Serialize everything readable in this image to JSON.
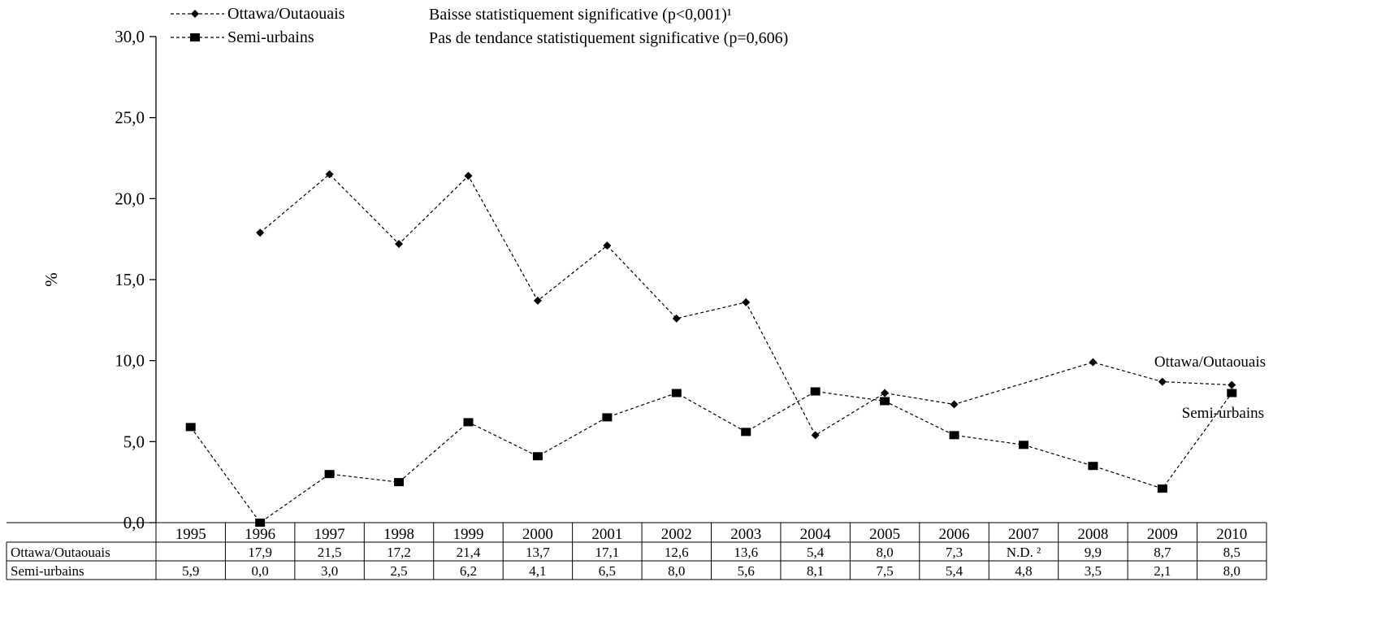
{
  "chart_data": {
    "type": "line",
    "title": "",
    "xlabel": "",
    "ylabel": "%",
    "ylim": [
      0,
      30
    ],
    "y_ticks": [
      "0,0",
      "5,0",
      "10,0",
      "15,0",
      "20,0",
      "25,0",
      "30,0"
    ],
    "categories": [
      "1995",
      "1996",
      "1997",
      "1998",
      "1999",
      "2000",
      "2001",
      "2002",
      "2003",
      "2004",
      "2005",
      "2006",
      "2007",
      "2008",
      "2009",
      "2010"
    ],
    "grid": false,
    "legend_position": "top-left",
    "series": [
      {
        "name": "Ottawa/Outaouais",
        "marker": "diamond",
        "values": [
          null,
          17.9,
          21.5,
          17.2,
          21.4,
          13.7,
          17.1,
          12.6,
          13.6,
          5.4,
          8.0,
          7.3,
          null,
          9.9,
          8.7,
          8.5
        ],
        "table_values": [
          "",
          "17,9",
          "21,5",
          "17,2",
          "21,4",
          "13,7",
          "17,1",
          "12,6",
          "13,6",
          "5,4",
          "8,0",
          "7,3",
          "N.D. ²",
          "9,9",
          "8,7",
          "8,5"
        ],
        "trend_note": "Baisse statistiquement significative (p<0,001)¹",
        "end_label": "Ottawa/Outaouais"
      },
      {
        "name": "Semi-urbains",
        "marker": "square",
        "values": [
          5.9,
          0.0,
          3.0,
          2.5,
          6.2,
          4.1,
          6.5,
          8.0,
          5.6,
          8.1,
          7.5,
          5.4,
          4.8,
          3.5,
          2.1,
          8.0
        ],
        "table_values": [
          "5,9",
          "0,0",
          "3,0",
          "2,5",
          "6,2",
          "4,1",
          "6,5",
          "8,0",
          "5,6",
          "8,1",
          "7,5",
          "5,4",
          "4,8",
          "3,5",
          "2,1",
          "8,0"
        ],
        "trend_note": "Pas de tendance statistiquement significative (p=0,606)",
        "end_label": "Semi-urbains"
      }
    ],
    "colors": {
      "line": "#000000",
      "marker": "#000000",
      "background": "#ffffff"
    }
  }
}
